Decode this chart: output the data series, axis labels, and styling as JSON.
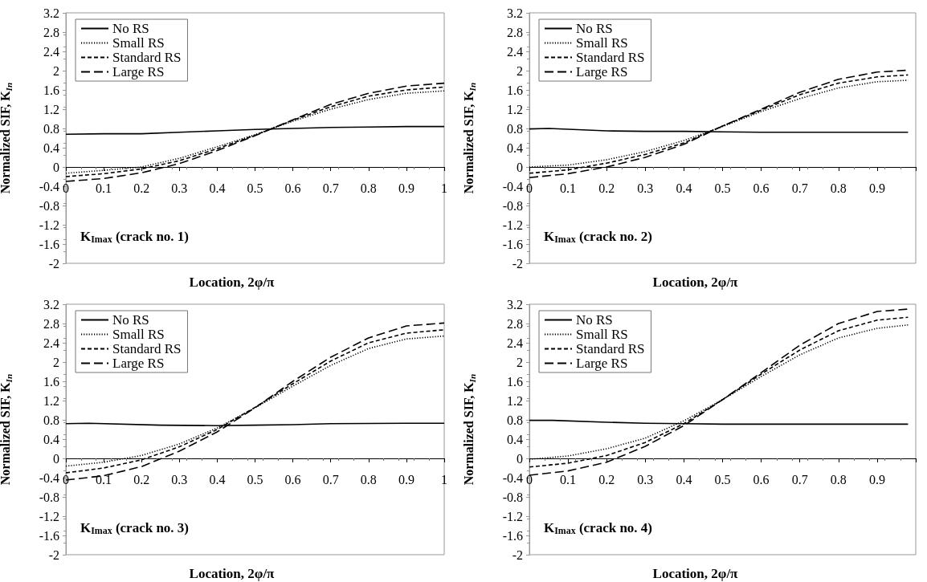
{
  "chart_data": [
    {
      "type": "line",
      "xlabel": "Location, 2φ/π",
      "ylabel": "Normalized SIF, K$_{In}$",
      "annotations": [
        "K$_{Imax}$ (crack no. 1)"
      ],
      "xlim": [
        0,
        1
      ],
      "xticks": [
        0,
        0.1,
        0.2,
        0.3,
        0.4,
        0.5,
        0.6,
        0.7,
        0.8,
        0.9,
        1
      ],
      "ylim": [
        -2,
        3.2
      ],
      "yticks": [
        -2,
        -1.6,
        -1.2,
        -0.8,
        -0.4,
        0,
        0.4,
        0.8,
        1.2,
        1.6,
        2,
        2.4,
        2.8,
        3.2
      ],
      "legend": "top left",
      "marker": "none",
      "grid": false,
      "series": [
        {
          "name": "No RS",
          "color": "#000000",
          "line_style": "solid",
          "x": [
            0,
            0.1,
            0.2,
            0.3,
            0.4,
            0.5,
            0.6,
            0.7,
            0.8,
            0.9,
            1
          ],
          "values": [
            0.68,
            0.69,
            0.69,
            0.72,
            0.75,
            0.78,
            0.8,
            0.82,
            0.83,
            0.84,
            0.84
          ]
        },
        {
          "name": "Small RS",
          "color": "#000000",
          "line_style": "dotted",
          "x": [
            0,
            0.1,
            0.2,
            0.3,
            0.4,
            0.5,
            0.6,
            0.7,
            0.8,
            0.9,
            1
          ],
          "values": [
            -0.13,
            -0.07,
            0.0,
            0.18,
            0.42,
            0.67,
            0.95,
            1.2,
            1.4,
            1.53,
            1.58
          ]
        },
        {
          "name": "Standard RS",
          "color": "#000000",
          "line_style": "dashed",
          "x": [
            0,
            0.1,
            0.2,
            0.3,
            0.4,
            0.5,
            0.6,
            0.7,
            0.8,
            0.9,
            1
          ],
          "values": [
            -0.2,
            -0.14,
            -0.04,
            0.13,
            0.38,
            0.66,
            0.97,
            1.25,
            1.47,
            1.6,
            1.66
          ]
        },
        {
          "name": "Large RS",
          "color": "#000000",
          "line_style": "dashed",
          "x": [
            0,
            0.1,
            0.2,
            0.3,
            0.4,
            0.5,
            0.6,
            0.7,
            0.8,
            0.9,
            1
          ],
          "values": [
            -0.3,
            -0.24,
            -0.12,
            0.07,
            0.34,
            0.65,
            0.98,
            1.3,
            1.53,
            1.68,
            1.74
          ]
        }
      ]
    },
    {
      "type": "line",
      "xlabel": "Location, 2φ/π",
      "ylabel": "Normalized SIF, K$_{In}$",
      "annotations": [
        "K$_{Imax}$ (crack no. 2)"
      ],
      "xlim": [
        0,
        1
      ],
      "xticks": [
        0,
        0.1,
        0.2,
        0.3,
        0.4,
        0.5,
        0.6,
        0.7,
        0.8,
        0.9,
        {
          "value": 1,
          "label": null
        }
      ],
      "ylim": [
        -2,
        3.2
      ],
      "yticks": [
        -2,
        -1.6,
        -1.2,
        -0.8,
        -0.4,
        0,
        0.4,
        0.8,
        1.2,
        1.6,
        2,
        2.4,
        2.8,
        3.2
      ],
      "legend": "top left",
      "marker": "none",
      "grid": false,
      "series": [
        {
          "name": "No RS",
          "color": "#000000",
          "line_style": "solid",
          "x": [
            0,
            0.05,
            0.2,
            0.3,
            0.4,
            0.5,
            0.6,
            0.8,
            0.98
          ],
          "values": [
            0.79,
            0.8,
            0.75,
            0.74,
            0.74,
            0.73,
            0.72,
            0.72,
            0.72
          ]
        },
        {
          "name": "Small RS",
          "color": "#000000",
          "line_style": "dotted",
          "x": [
            0,
            0.1,
            0.2,
            0.3,
            0.4,
            0.5,
            0.6,
            0.7,
            0.8,
            0.9,
            0.98
          ],
          "values": [
            0.0,
            0.04,
            0.15,
            0.32,
            0.55,
            0.84,
            1.15,
            1.42,
            1.64,
            1.77,
            1.8
          ]
        },
        {
          "name": "Standard RS",
          "color": "#000000",
          "line_style": "dashed",
          "x": [
            0,
            0.1,
            0.2,
            0.3,
            0.4,
            0.5,
            0.6,
            0.7,
            0.8,
            0.9,
            0.98
          ],
          "values": [
            -0.13,
            -0.06,
            0.08,
            0.26,
            0.5,
            0.85,
            1.18,
            1.5,
            1.74,
            1.87,
            1.91
          ]
        },
        {
          "name": "Large RS",
          "color": "#000000",
          "line_style": "dashed",
          "x": [
            0,
            0.1,
            0.2,
            0.3,
            0.4,
            0.5,
            0.6,
            0.7,
            0.8,
            0.9,
            0.98
          ],
          "values": [
            -0.22,
            -0.14,
            0.0,
            0.2,
            0.47,
            0.85,
            1.2,
            1.55,
            1.82,
            1.97,
            2.01
          ]
        }
      ]
    },
    {
      "type": "line",
      "xlabel": "Location, 2φ/π",
      "ylabel": "Normalized SIF, K$_{In}$",
      "annotations": [
        "K$_{Imax}$ (crack no. 3)"
      ],
      "xlim": [
        0,
        1
      ],
      "xticks": [
        0,
        0.1,
        0.2,
        0.3,
        0.4,
        0.5,
        0.6,
        0.7,
        0.8,
        0.9,
        1
      ],
      "ylim": [
        -2,
        3.2
      ],
      "yticks": [
        -2,
        -1.6,
        -1.2,
        -0.8,
        -0.4,
        0,
        0.4,
        0.8,
        1.2,
        1.6,
        2,
        2.4,
        2.8,
        3.2
      ],
      "legend": "top left",
      "marker": "none",
      "grid": false,
      "series": [
        {
          "name": "No RS",
          "color": "#000000",
          "line_style": "solid",
          "x": [
            0,
            0.06,
            0.25,
            0.4,
            0.5,
            0.6,
            0.7,
            0.9,
            1
          ],
          "values": [
            0.72,
            0.73,
            0.69,
            0.68,
            0.69,
            0.7,
            0.72,
            0.73,
            0.73
          ]
        },
        {
          "name": "Small RS",
          "color": "#000000",
          "line_style": "dotted",
          "x": [
            0,
            0.1,
            0.2,
            0.3,
            0.4,
            0.5,
            0.6,
            0.7,
            0.8,
            0.9,
            1
          ],
          "values": [
            -0.16,
            -0.08,
            0.06,
            0.3,
            0.63,
            1.05,
            1.5,
            1.93,
            2.28,
            2.48,
            2.54
          ]
        },
        {
          "name": "Standard RS",
          "color": "#000000",
          "line_style": "dashed",
          "x": [
            0,
            0.1,
            0.2,
            0.3,
            0.4,
            0.5,
            0.6,
            0.7,
            0.8,
            0.9,
            1
          ],
          "values": [
            -0.3,
            -0.2,
            -0.03,
            0.24,
            0.6,
            1.06,
            1.55,
            2.02,
            2.4,
            2.6,
            2.67
          ]
        },
        {
          "name": "Large RS",
          "color": "#000000",
          "line_style": "dashed",
          "x": [
            0,
            0.1,
            0.2,
            0.3,
            0.4,
            0.5,
            0.6,
            0.7,
            0.8,
            0.9,
            1
          ],
          "values": [
            -0.45,
            -0.36,
            -0.17,
            0.15,
            0.55,
            1.05,
            1.6,
            2.1,
            2.5,
            2.75,
            2.81
          ]
        }
      ]
    },
    {
      "type": "line",
      "xlabel": "Location, 2φ/π",
      "ylabel": "Normalized SIF, K$_{In}$",
      "annotations": [
        "K$_{Imax}$ (crack no. 4)"
      ],
      "xlim": [
        0,
        1
      ],
      "xticks": [
        0,
        0.1,
        0.2,
        0.3,
        0.4,
        0.5,
        0.6,
        0.7,
        0.8,
        0.9,
        {
          "value": 1,
          "label": null
        }
      ],
      "ylim": [
        -2,
        3.2
      ],
      "yticks": [
        -2,
        -1.6,
        -1.2,
        -0.8,
        -0.4,
        0,
        0.4,
        0.8,
        1.2,
        1.6,
        2,
        2.4,
        2.8,
        3.2
      ],
      "legend": "top left",
      "marker": "none",
      "grid": false,
      "series": [
        {
          "name": "No RS",
          "color": "#000000",
          "line_style": "solid",
          "x": [
            0,
            0.06,
            0.2,
            0.3,
            0.4,
            0.5,
            0.7,
            0.98
          ],
          "values": [
            0.79,
            0.79,
            0.75,
            0.73,
            0.72,
            0.71,
            0.71,
            0.71
          ]
        },
        {
          "name": "Small RS",
          "color": "#000000",
          "line_style": "dotted",
          "x": [
            0,
            0.1,
            0.2,
            0.3,
            0.4,
            0.5,
            0.6,
            0.7,
            0.8,
            0.9,
            0.98
          ],
          "values": [
            -0.02,
            0.05,
            0.2,
            0.42,
            0.78,
            1.22,
            1.7,
            2.15,
            2.5,
            2.7,
            2.77
          ]
        },
        {
          "name": "Standard RS",
          "color": "#000000",
          "line_style": "dashed",
          "x": [
            0,
            0.1,
            0.2,
            0.3,
            0.4,
            0.5,
            0.6,
            0.7,
            0.8,
            0.9,
            0.98
          ],
          "values": [
            -0.18,
            -0.1,
            0.06,
            0.33,
            0.72,
            1.22,
            1.75,
            2.25,
            2.65,
            2.87,
            2.93
          ]
        },
        {
          "name": "Large RS",
          "color": "#000000",
          "line_style": "dashed",
          "x": [
            0,
            0.1,
            0.2,
            0.3,
            0.4,
            0.5,
            0.6,
            0.7,
            0.8,
            0.9,
            0.98
          ],
          "values": [
            -0.35,
            -0.26,
            -0.08,
            0.25,
            0.68,
            1.22,
            1.78,
            2.35,
            2.8,
            3.05,
            3.1
          ]
        }
      ]
    }
  ]
}
